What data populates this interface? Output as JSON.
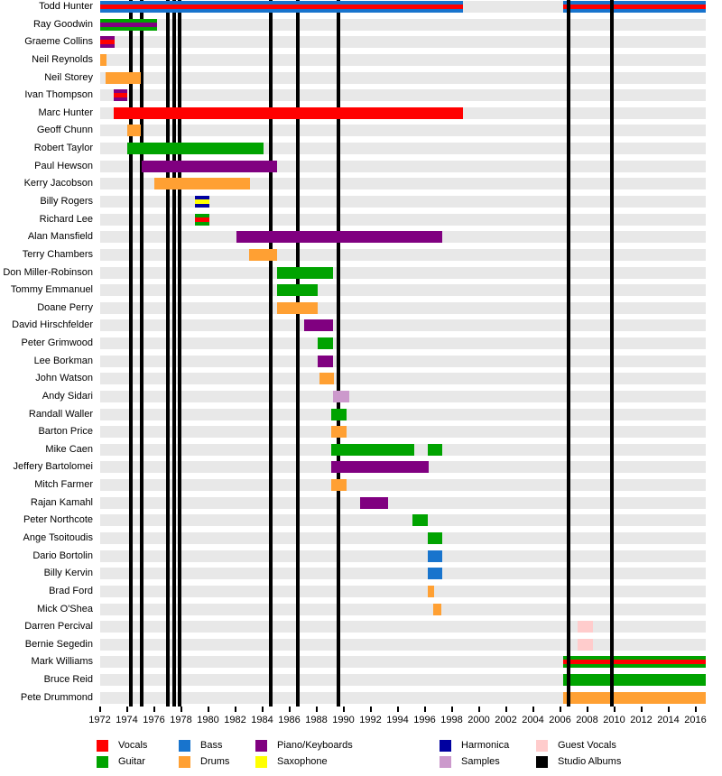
{
  "chart_data": {
    "type": "bar",
    "subtype": "band-membership-gantt-timeline",
    "title": "",
    "x_axis": {
      "range_start": 1972,
      "range_end": 2016.75,
      "tick_step": 2,
      "ticks": [
        1972,
        1974,
        1976,
        1978,
        1980,
        1982,
        1984,
        1986,
        1988,
        1990,
        1992,
        1994,
        1996,
        1998,
        2000,
        2002,
        2004,
        2006,
        2008,
        2010,
        2012,
        2014,
        2016
      ],
      "tick_labels": [
        "1972",
        "1974",
        "1976",
        "1978",
        "1980",
        "1982",
        "1984",
        "1986",
        "1988",
        "1990",
        "1992",
        "1994",
        "1996",
        "1998",
        "2000",
        "2002",
        "2004",
        "2006",
        "2008",
        "2010",
        "2012",
        "2014",
        "2016"
      ]
    },
    "colors": {
      "vocals": "#FF0000",
      "guitar": "#00A300",
      "bass": "#1874CD",
      "drums": "#FFA033",
      "piano": "#800080",
      "saxophone": "#FFFF00",
      "harmonica": "#0000A0",
      "samples": "#CC99CC",
      "guest_vocals": "#FFCCCC",
      "studio_albums": "#000000",
      "row_track": "#E8E8E8"
    },
    "album_lines_behind_bars": [
      1974.3,
      1975.1,
      1977.0,
      1977.5,
      1977.9,
      1984.6,
      1986.6,
      1989.6
    ],
    "album_lines_front_of_bars": [
      2006.6,
      2009.8
    ],
    "members": [
      {
        "name": "Todd Hunter",
        "segments": [
          {
            "start": 1972.0,
            "end": 1998.8,
            "color": "bass",
            "stripe": "vocals"
          },
          {
            "start": 2006.2,
            "end": 2016.75,
            "color": "bass",
            "stripe": "vocals"
          }
        ]
      },
      {
        "name": "Ray Goodwin",
        "segments": [
          {
            "start": 1972.0,
            "end": 1976.2,
            "color": "guitar",
            "stripe": "piano"
          }
        ]
      },
      {
        "name": "Graeme Collins",
        "segments": [
          {
            "start": 1972.0,
            "end": 1973.1,
            "color": "piano",
            "stripe": "vocals"
          }
        ]
      },
      {
        "name": "Neil Reynolds",
        "segments": [
          {
            "start": 1972.0,
            "end": 1972.5,
            "color": "drums"
          }
        ]
      },
      {
        "name": "Neil Storey",
        "segments": [
          {
            "start": 1972.4,
            "end": 1975.0,
            "color": "drums"
          }
        ]
      },
      {
        "name": "Ivan Thompson",
        "segments": [
          {
            "start": 1973.0,
            "end": 1974.0,
            "color": "piano",
            "stripe": "vocals"
          }
        ]
      },
      {
        "name": "Marc Hunter",
        "segments": [
          {
            "start": 1973.0,
            "end": 1998.8,
            "color": "vocals"
          }
        ]
      },
      {
        "name": "Geoff Chunn",
        "segments": [
          {
            "start": 1974.0,
            "end": 1975.0,
            "color": "drums"
          }
        ]
      },
      {
        "name": "Robert Taylor",
        "segments": [
          {
            "start": 1974.0,
            "end": 1984.1,
            "color": "guitar"
          }
        ]
      },
      {
        "name": "Paul Hewson",
        "segments": [
          {
            "start": 1975.1,
            "end": 1985.1,
            "color": "piano"
          }
        ]
      },
      {
        "name": "Kerry Jacobson",
        "segments": [
          {
            "start": 1976.0,
            "end": 1983.1,
            "color": "drums"
          }
        ]
      },
      {
        "name": "Billy Rogers",
        "segments": [
          {
            "start": 1979.0,
            "end": 1980.1,
            "color": "harmonica",
            "stripe": "saxophone"
          }
        ]
      },
      {
        "name": "Richard Lee",
        "segments": [
          {
            "start": 1979.0,
            "end": 1980.1,
            "color": "guitar",
            "stripe": "vocals"
          }
        ]
      },
      {
        "name": "Alan Mansfield",
        "segments": [
          {
            "start": 1982.1,
            "end": 1997.3,
            "color": "piano"
          }
        ]
      },
      {
        "name": "Terry Chambers",
        "segments": [
          {
            "start": 1983.0,
            "end": 1985.1,
            "color": "drums"
          }
        ]
      },
      {
        "name": "Don Miller-Robinson",
        "segments": [
          {
            "start": 1985.1,
            "end": 1989.2,
            "color": "guitar"
          }
        ]
      },
      {
        "name": "Tommy Emmanuel",
        "segments": [
          {
            "start": 1985.1,
            "end": 1988.1,
            "color": "guitar"
          }
        ]
      },
      {
        "name": "Doane Perry",
        "segments": [
          {
            "start": 1985.1,
            "end": 1988.1,
            "color": "drums"
          }
        ]
      },
      {
        "name": "David Hirschfelder",
        "segments": [
          {
            "start": 1987.1,
            "end": 1989.2,
            "color": "piano"
          }
        ]
      },
      {
        "name": "Peter Grimwood",
        "segments": [
          {
            "start": 1988.1,
            "end": 1989.2,
            "color": "guitar"
          }
        ]
      },
      {
        "name": "Lee Borkman",
        "segments": [
          {
            "start": 1988.1,
            "end": 1989.2,
            "color": "piano"
          }
        ]
      },
      {
        "name": "John Watson",
        "segments": [
          {
            "start": 1988.2,
            "end": 1989.3,
            "color": "drums"
          }
        ]
      },
      {
        "name": "Andy Sidari",
        "segments": [
          {
            "start": 1989.2,
            "end": 1990.4,
            "color": "samples"
          }
        ]
      },
      {
        "name": "Randall Waller",
        "segments": [
          {
            "start": 1989.1,
            "end": 1990.2,
            "color": "guitar"
          }
        ]
      },
      {
        "name": "Barton Price",
        "segments": [
          {
            "start": 1989.1,
            "end": 1990.2,
            "color": "drums"
          }
        ]
      },
      {
        "name": "Mike Caen",
        "segments": [
          {
            "start": 1989.1,
            "end": 1995.2,
            "color": "guitar"
          },
          {
            "start": 1996.2,
            "end": 1997.3,
            "color": "guitar"
          }
        ]
      },
      {
        "name": "Jeffery Bartolomei",
        "segments": [
          {
            "start": 1989.1,
            "end": 1996.3,
            "color": "piano"
          }
        ]
      },
      {
        "name": "Mitch Farmer",
        "segments": [
          {
            "start": 1989.1,
            "end": 1990.2,
            "color": "drums"
          }
        ]
      },
      {
        "name": "Rajan Kamahl",
        "segments": [
          {
            "start": 1991.2,
            "end": 1993.3,
            "color": "piano"
          }
        ]
      },
      {
        "name": "Peter Northcote",
        "segments": [
          {
            "start": 1995.1,
            "end": 1996.2,
            "color": "guitar"
          }
        ]
      },
      {
        "name": "Ange Tsoitoudis",
        "segments": [
          {
            "start": 1996.2,
            "end": 1997.3,
            "color": "guitar"
          }
        ]
      },
      {
        "name": "Dario Bortolin",
        "segments": [
          {
            "start": 1996.2,
            "end": 1997.3,
            "color": "bass"
          }
        ]
      },
      {
        "name": "Billy Kervin",
        "segments": [
          {
            "start": 1996.2,
            "end": 1997.3,
            "color": "bass"
          }
        ]
      },
      {
        "name": "Brad Ford",
        "segments": [
          {
            "start": 1996.2,
            "end": 1996.7,
            "color": "drums"
          }
        ]
      },
      {
        "name": "Mick O'Shea",
        "segments": [
          {
            "start": 1996.6,
            "end": 1997.2,
            "color": "drums"
          }
        ]
      },
      {
        "name": "Darren Percival",
        "segments": [
          {
            "start": 2007.3,
            "end": 2008.4,
            "color": "guest_vocals"
          }
        ]
      },
      {
        "name": "Bernie Segedin",
        "segments": [
          {
            "start": 2007.3,
            "end": 2008.4,
            "color": "guest_vocals"
          }
        ]
      },
      {
        "name": "Mark Williams",
        "segments": [
          {
            "start": 2006.2,
            "end": 2016.75,
            "color": "guitar",
            "stripe": "vocals"
          }
        ]
      },
      {
        "name": "Bruce Reid",
        "segments": [
          {
            "start": 2006.2,
            "end": 2016.75,
            "color": "guitar"
          }
        ]
      },
      {
        "name": "Pete Drummond",
        "segments": [
          {
            "start": 2006.2,
            "end": 2016.75,
            "color": "drums"
          }
        ]
      }
    ],
    "legend": {
      "rows": [
        [
          {
            "label": "Vocals",
            "color": "vocals"
          },
          {
            "label": "Bass",
            "color": "bass"
          },
          {
            "label": "Piano/Keyboards",
            "color": "piano"
          },
          {
            "label": "Harmonica",
            "color": "harmonica"
          },
          {
            "label": "Guest Vocals",
            "color": "guest_vocals"
          }
        ],
        [
          {
            "label": "Guitar",
            "color": "guitar"
          },
          {
            "label": "Drums",
            "color": "drums"
          },
          {
            "label": "Saxophone",
            "color": "saxophone"
          },
          {
            "label": "Samples",
            "color": "samples"
          },
          {
            "label": "Studio Albums",
            "color": "studio_albums"
          }
        ]
      ]
    }
  }
}
